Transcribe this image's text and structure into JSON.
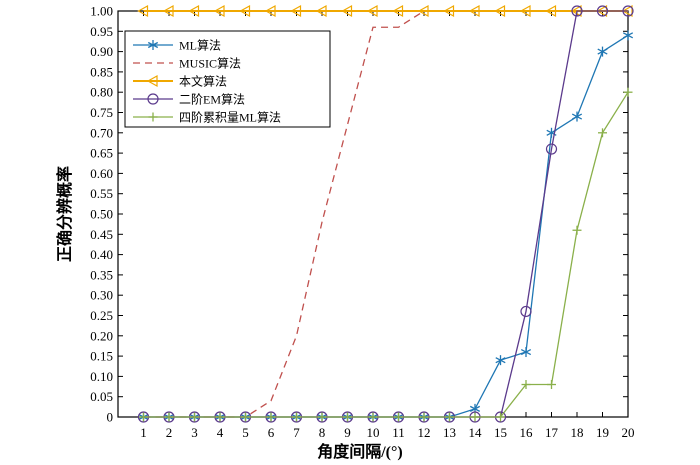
{
  "chart_data": {
    "type": "line",
    "title": "",
    "xlabel": "角度间隔/(°)",
    "ylabel": "正确分辨概率",
    "xlim": [
      0,
      20
    ],
    "ylim": [
      0,
      1
    ],
    "grid": false,
    "legend_placement": "top-left",
    "x_ticks": [
      1,
      2,
      3,
      4,
      5,
      6,
      7,
      8,
      9,
      10,
      11,
      12,
      13,
      14,
      15,
      16,
      17,
      18,
      19,
      20
    ],
    "y_ticks": [
      "0",
      "0.05",
      "0.10",
      "0.15",
      "0.20",
      "0.25",
      "0.30",
      "0.35",
      "0.40",
      "0.45",
      "0.50",
      "0.55",
      "0.60",
      "0.65",
      "0.70",
      "0.75",
      "0.80",
      "0.85",
      "0.90",
      "0.95",
      "1.00"
    ],
    "series": [
      {
        "name": "ML算法",
        "color": "#1f77b4",
        "style": "solid",
        "marker": "asterisk",
        "x": [
          1,
          2,
          3,
          4,
          5,
          6,
          7,
          8,
          9,
          10,
          11,
          12,
          13,
          14,
          15,
          16,
          17,
          18,
          19,
          20
        ],
        "y": [
          0,
          0,
          0,
          0,
          0,
          0,
          0,
          0,
          0,
          0,
          0,
          0,
          0,
          0.02,
          0.14,
          0.16,
          0.7,
          0.74,
          0.9,
          0.94
        ]
      },
      {
        "name": "MUSIC算法",
        "color": "#c0504d",
        "style": "dashed",
        "marker": "none",
        "x": [
          1,
          2,
          3,
          4,
          5,
          6,
          7,
          8,
          9,
          10,
          11,
          12,
          13,
          14,
          15,
          16,
          17,
          18,
          19,
          20
        ],
        "y": [
          0,
          0,
          0,
          0,
          0,
          0.04,
          0.2,
          0.48,
          0.72,
          0.96,
          0.96,
          1.0,
          1.0,
          1.0,
          1.0,
          1.0,
          1.0,
          1.0,
          1.0,
          1.0
        ]
      },
      {
        "name": "本文算法",
        "color": "#f0a800",
        "style": "solid",
        "marker": "triangle-left",
        "x": [
          1,
          2,
          3,
          4,
          5,
          6,
          7,
          8,
          9,
          10,
          11,
          12,
          13,
          14,
          15,
          16,
          17,
          18,
          19,
          20
        ],
        "y": [
          1,
          1,
          1,
          1,
          1,
          1,
          1,
          1,
          1,
          1,
          1,
          1,
          1,
          1,
          1,
          1,
          1,
          1,
          1,
          1
        ]
      },
      {
        "name": "二阶EM算法",
        "color": "#5b3a8c",
        "style": "solid",
        "marker": "circle",
        "x": [
          1,
          2,
          3,
          4,
          5,
          6,
          7,
          8,
          9,
          10,
          11,
          12,
          13,
          14,
          15,
          16,
          17,
          18,
          19,
          20
        ],
        "y": [
          0,
          0,
          0,
          0,
          0,
          0,
          0,
          0,
          0,
          0,
          0,
          0,
          0,
          0,
          0,
          0.26,
          0.66,
          1.0,
          1.0,
          1.0
        ]
      },
      {
        "name": "四阶累积量ML算法",
        "color": "#8ab04a",
        "style": "solid",
        "marker": "plus",
        "x": [
          1,
          2,
          3,
          4,
          5,
          6,
          7,
          8,
          9,
          10,
          11,
          12,
          13,
          14,
          15,
          16,
          17,
          18,
          19,
          20
        ],
        "y": [
          0,
          0,
          0,
          0,
          0,
          0,
          0,
          0,
          0,
          0,
          0,
          0,
          0,
          0,
          0,
          0.08,
          0.08,
          0.46,
          0.7,
          0.8
        ]
      }
    ]
  }
}
